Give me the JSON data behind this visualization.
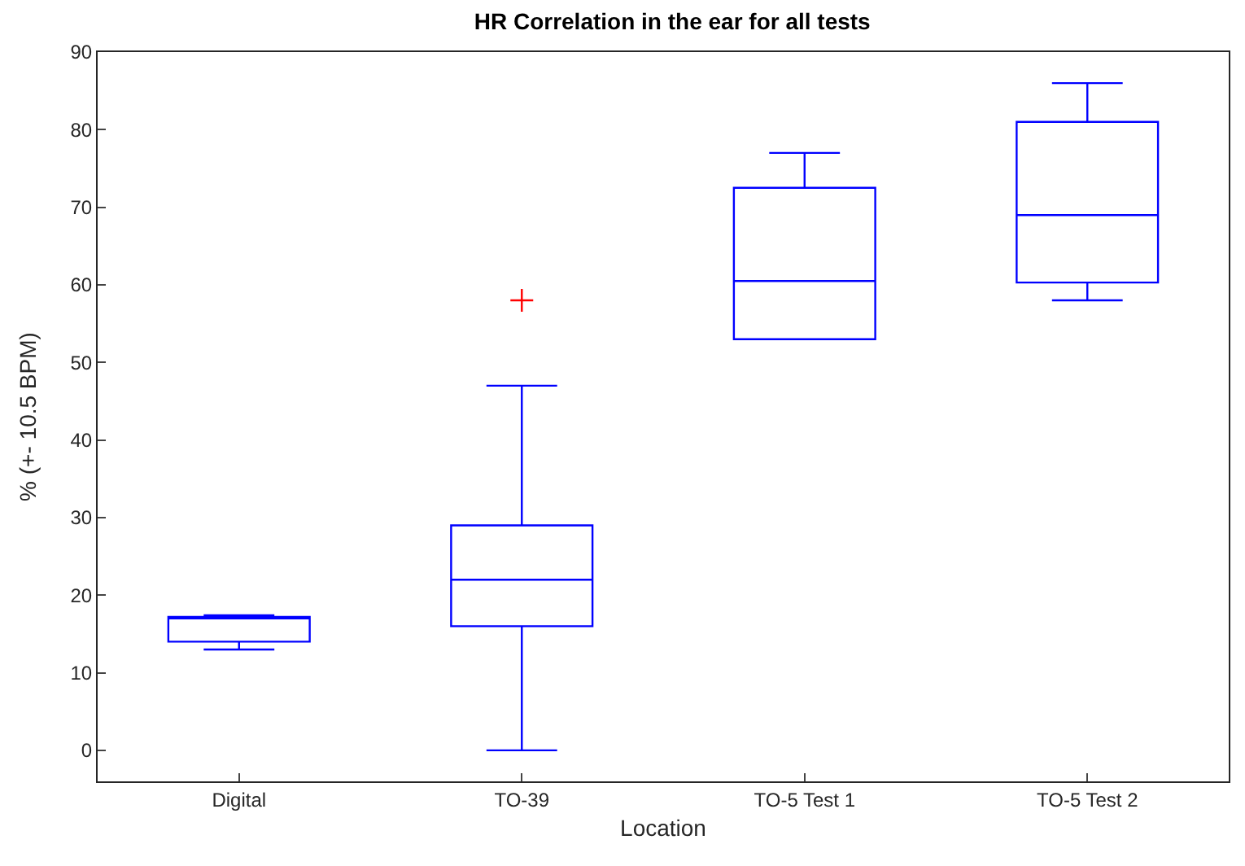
{
  "chart_data": {
    "type": "box",
    "title": "HR Correlation in the ear for all tests",
    "xlabel": "Location",
    "ylabel": "% (+- 10.5 BPM)",
    "categories": [
      "Digital",
      "TO-39",
      "TO-5 Test 1",
      "TO-5 Test 2"
    ],
    "ylim": [
      -4,
      90
    ],
    "yticks": [
      0,
      10,
      20,
      30,
      40,
      50,
      60,
      70,
      80,
      90
    ],
    "grid": false,
    "marker": "cross",
    "series": [
      {
        "color": "#0000ff",
        "boxes": [
          {
            "low": 13,
            "q1": 14,
            "median": 17,
            "q3": 17.2,
            "high": 17.4
          },
          {
            "low": 0,
            "q1": 16,
            "median": 22,
            "q3": 29,
            "high": 47
          },
          {
            "low": 53,
            "q1": 53,
            "median": 60.5,
            "q3": 72.5,
            "high": 77
          },
          {
            "low": 58,
            "q1": 60.3,
            "median": 69,
            "q3": 81,
            "high": 86
          }
        ]
      },
      {
        "type": "scatter",
        "color": "#ff0000",
        "x": [
          "TO-39"
        ],
        "values": [
          58
        ]
      }
    ]
  }
}
